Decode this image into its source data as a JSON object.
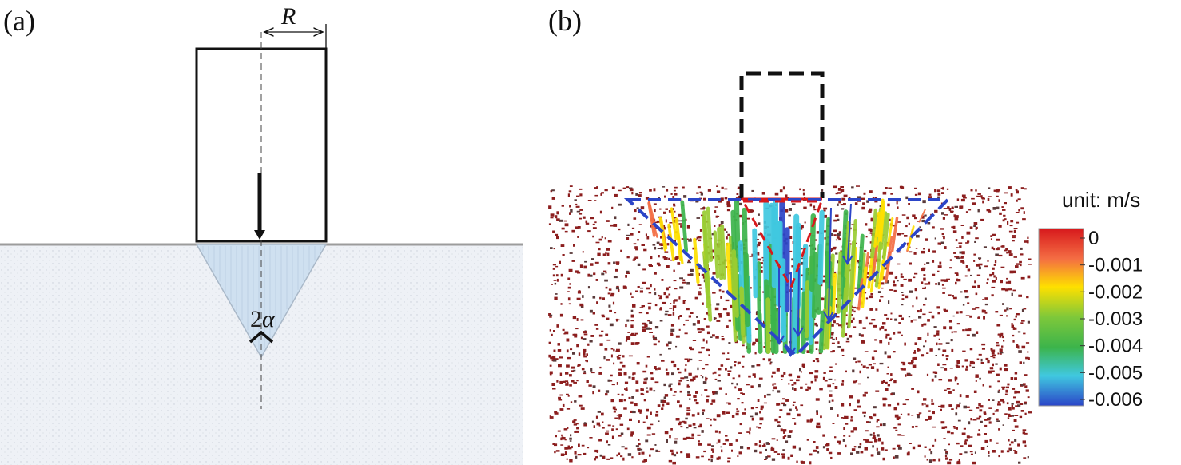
{
  "panel_a": {
    "label": "(a)",
    "radius_symbol": "R",
    "angle_label_num": "2",
    "angle_label_greek": "α"
  },
  "panel_b": {
    "label": "(b)",
    "legend": {
      "title": "unit: m/s",
      "ticks": [
        "0",
        "-0.001",
        "-0.002",
        "-0.003",
        "-0.004",
        "-0.005",
        "-0.006"
      ]
    }
  },
  "colors": {
    "soil_fill": "#eef1f6",
    "cone_fill": "#cfe0f0",
    "ground_line": "#9c9c9c",
    "particle": "#8c1e1e",
    "failure_line": "#2b45c8",
    "pile_outline": "#111111",
    "colormap": [
      "#d7191c",
      "#f46d43",
      "#fee000",
      "#9acd32",
      "#3cb44b",
      "#40c8e0",
      "#2b45c8"
    ]
  }
}
